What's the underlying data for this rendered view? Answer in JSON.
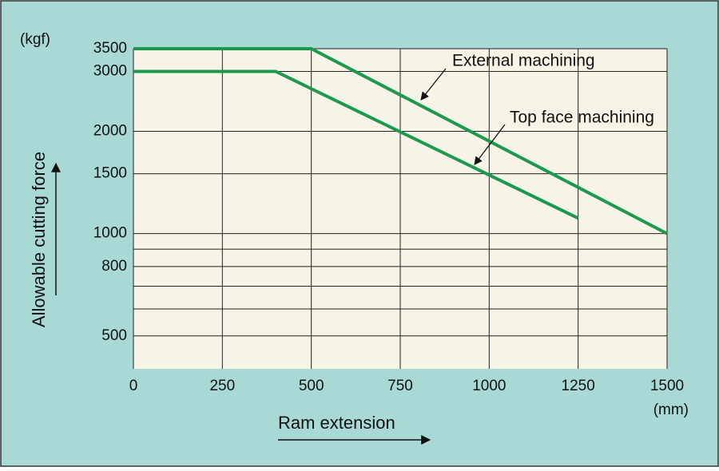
{
  "chart_data": {
    "type": "line",
    "y_label": "Allowable cutting force",
    "y_unit": "(kgf)",
    "x_label": "Ram extension",
    "x_unit": "(mm)",
    "xlim": [
      0,
      1500
    ],
    "xticks": [
      0,
      250,
      500,
      750,
      1000,
      1250,
      1500
    ],
    "ylim": [
      400,
      3500
    ],
    "yticks": [
      500,
      800,
      1000,
      1500,
      2000,
      3000,
      3500
    ],
    "minor_yticks": [
      600,
      700,
      900
    ],
    "log_y": true,
    "grid": true,
    "series": [
      {
        "name": "External machining",
        "color": "#1b9a4e",
        "x": [
          0,
          500,
          1500
        ],
        "values": [
          3500,
          3500,
          1000
        ]
      },
      {
        "name": "Top face machining",
        "color": "#1b9a4e",
        "x": [
          0,
          400,
          1250
        ],
        "values": [
          3000,
          3000,
          1110
        ]
      }
    ]
  }
}
